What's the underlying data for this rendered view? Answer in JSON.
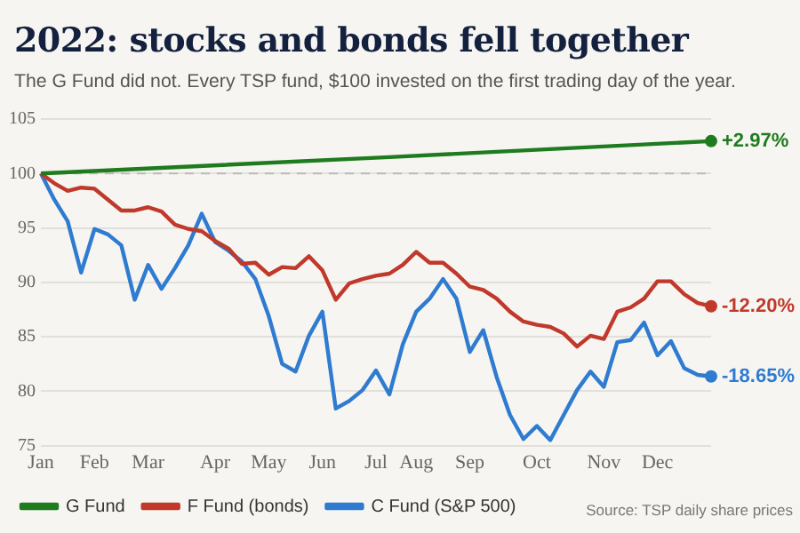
{
  "chart_data": {
    "type": "line",
    "title": "2022: stocks and bonds fell together",
    "subtitle": "The G Fund did not. Every TSP fund, $100 invested on the first trading day of the year.",
    "categories": [
      "Jan",
      null,
      null,
      null,
      "Feb",
      null,
      null,
      null,
      "Mar",
      null,
      null,
      null,
      null,
      "Apr",
      null,
      null,
      null,
      "May",
      null,
      null,
      null,
      "Jun",
      null,
      null,
      null,
      "Jul",
      null,
      null,
      "Aug",
      null,
      null,
      null,
      "Sep",
      null,
      null,
      null,
      null,
      "Oct",
      null,
      null,
      null,
      null,
      "Nov",
      null,
      null,
      null,
      "Dec",
      null,
      null,
      null,
      null
    ],
    "ylim": [
      75,
      105
    ],
    "yticks": [
      75,
      80,
      85,
      90,
      95,
      100,
      105
    ],
    "grid": "y",
    "legend": "bottom",
    "line_style": "solid",
    "ref_lines": [
      {
        "axis": "y",
        "value": 100,
        "color": "#bbbbbb",
        "line_style": "dashed"
      }
    ],
    "series": [
      {
        "name": "G Fund",
        "color": "#1e7b1e",
        "values": [
          100,
          null,
          null,
          null,
          null,
          null,
          null,
          null,
          null,
          null,
          null,
          null,
          null,
          null,
          null,
          null,
          null,
          null,
          null,
          null,
          null,
          null,
          null,
          null,
          null,
          null,
          101.5,
          null,
          null,
          null,
          null,
          null,
          null,
          null,
          null,
          null,
          null,
          null,
          null,
          null,
          null,
          null,
          null,
          null,
          null,
          null,
          null,
          null,
          null,
          null,
          102.97
        ]
      },
      {
        "name": "F Fund (bonds)",
        "color": "#c0392b",
        "values": [
          100,
          99.1,
          98.4,
          98.7,
          98.6,
          97.6,
          96.6,
          96.6,
          96.9,
          96.5,
          95.3,
          94.9,
          94.7,
          93.8,
          93.1,
          91.7,
          91.8,
          90.7,
          91.4,
          91.3,
          92.4,
          91.1,
          88.4,
          89.9,
          90.3,
          90.6,
          90.8,
          91.6,
          92.8,
          91.8,
          91.8,
          90.8,
          89.6,
          89.3,
          88.5,
          87.3,
          86.4,
          86.1,
          85.9,
          85.3,
          84.1,
          85.1,
          84.8,
          87.3,
          87.7,
          88.5,
          90.1,
          90.1,
          88.9,
          88.1,
          87.8
        ]
      },
      {
        "name": "C Fund (S&P 500)",
        "color": "#2f7bd0",
        "values": [
          100,
          97.6,
          95.6,
          90.9,
          94.9,
          94.4,
          93.4,
          88.4,
          91.6,
          89.4,
          91.3,
          93.4,
          96.3,
          93.7,
          92.9,
          91.9,
          90.3,
          86.9,
          82.5,
          81.8,
          85.1,
          87.3,
          78.4,
          79.1,
          80.1,
          81.9,
          79.7,
          84.3,
          87.3,
          88.5,
          90.3,
          88.5,
          83.6,
          85.6,
          81.3,
          77.8,
          75.6,
          76.8,
          75.5,
          77.8,
          80.1,
          81.8,
          80.4,
          84.5,
          84.7,
          86.3,
          83.3,
          84.6,
          82.1,
          81.5,
          81.35
        ]
      }
    ],
    "annotations": [
      "+2.97%",
      "-12.20%",
      "-18.65%",
      "Source: TSP daily share prices"
    ]
  }
}
